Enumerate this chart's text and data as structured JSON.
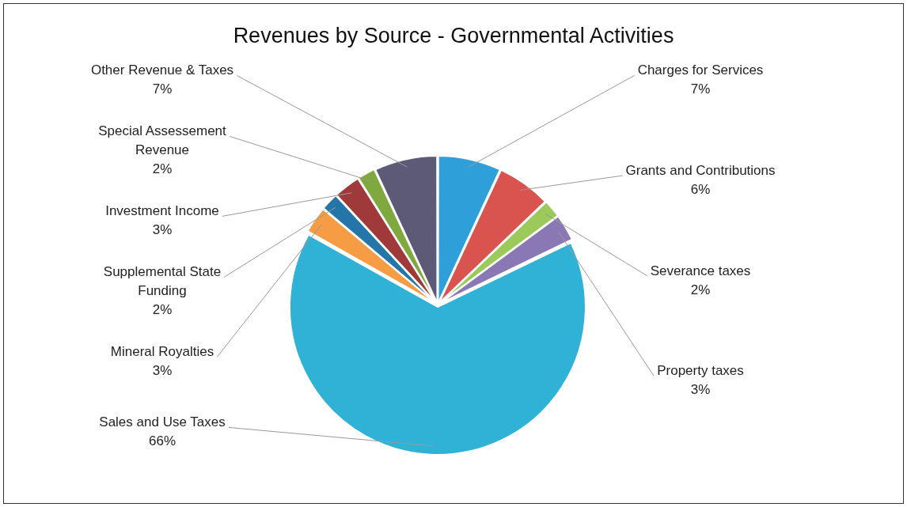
{
  "chart_data": {
    "type": "pie",
    "title": "Revenues by Source - Governmental Activities",
    "categories": [
      "Charges for Services",
      "Grants and Contributions",
      "Severance taxes",
      "Property taxes",
      "Sales and Use Taxes",
      "Mineral Royalties",
      "Supplemental State Funding",
      "Investment Income",
      "Special Assessement Revenue",
      "Other Revenue & Taxes"
    ],
    "values": [
      7,
      6,
      2,
      3,
      66,
      3,
      2,
      3,
      2,
      7
    ],
    "value_labels": [
      "7%",
      "6%",
      "2%",
      "3%",
      "66%",
      "3%",
      "2%",
      "3%",
      "2%",
      "7%"
    ],
    "colors": [
      "#2e9fd9",
      "#d9534f",
      "#9bc95a",
      "#8a78b5",
      "#2fb2d6",
      "#f59c45",
      "#2576a8",
      "#a03a3a",
      "#7fa83e",
      "#5d5a78"
    ],
    "legend": false
  }
}
